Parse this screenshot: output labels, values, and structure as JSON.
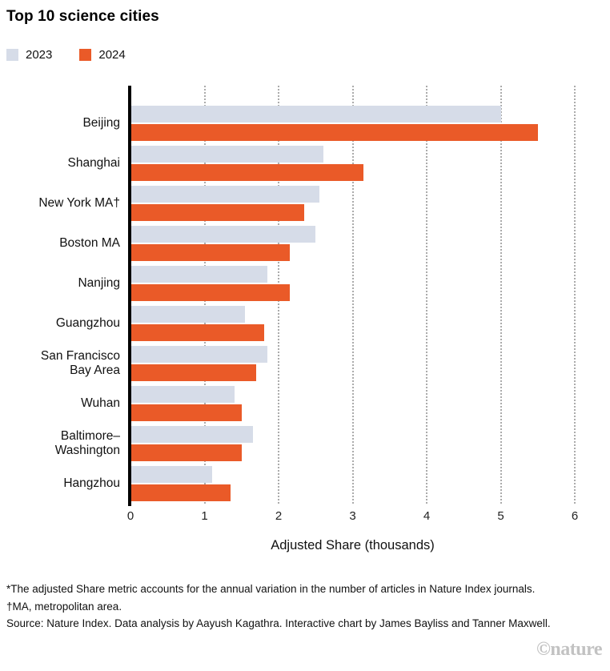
{
  "page": {
    "title": "Top 10 science cities"
  },
  "legend": {
    "items": [
      {
        "label": "2023",
        "color": "#D6DCE8"
      },
      {
        "label": "2024",
        "color": "#EA5A28"
      }
    ]
  },
  "chart_data": {
    "type": "bar",
    "orientation": "horizontal",
    "title": "Top 10 science cities",
    "categories": [
      "Beijing",
      "Shanghai",
      "New York MA†",
      "Boston MA",
      "Nanjing",
      "Guangzhou",
      "San Francisco\nBay Area",
      "Wuhan",
      "Baltimore–\nWashington",
      "Hangzhou"
    ],
    "series": [
      {
        "name": "2023",
        "color": "#D6DCE8",
        "values": [
          5.0,
          2.6,
          2.55,
          2.5,
          1.85,
          1.55,
          1.85,
          1.4,
          1.65,
          1.1
        ]
      },
      {
        "name": "2024",
        "color": "#EA5A28",
        "values": [
          5.5,
          3.15,
          2.35,
          2.15,
          2.15,
          1.8,
          1.7,
          1.5,
          1.5,
          1.35
        ]
      }
    ],
    "xlabel": "Adjusted Share (thousands)",
    "xlim": [
      0,
      6
    ],
    "xticks": [
      0,
      1,
      2,
      3,
      4,
      5,
      6
    ],
    "grid": "dotted-vertical",
    "legend_position": "top-left"
  },
  "footnotes": {
    "line1": "*The adjusted Share metric accounts for the annual variation in the number of articles in Nature Index journals.",
    "line2": "†MA, metropolitan area.",
    "line3": "Source: Nature Index. Data analysis by Aayush Kagathra. Interactive chart by James Bayliss and Tanner Maxwell."
  },
  "watermark": "©nature"
}
